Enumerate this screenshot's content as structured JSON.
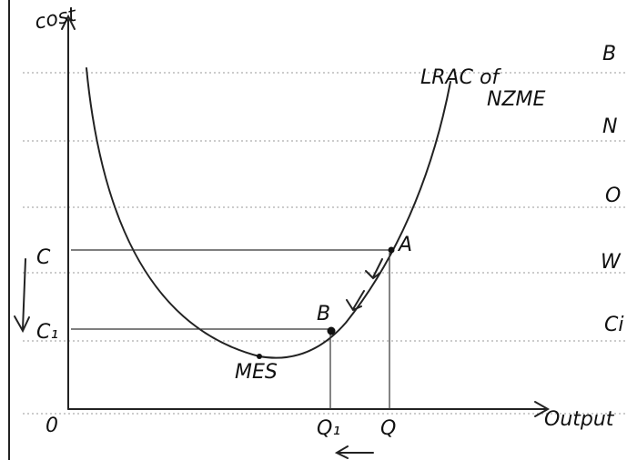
{
  "axes": {
    "y_label": "cost",
    "x_label": "Output",
    "origin": "0"
  },
  "curve": {
    "label_lines": [
      "LRAC of",
      "NZME"
    ]
  },
  "levels": [
    "C",
    "C₁"
  ],
  "quantities": [
    "Q₁",
    "Q"
  ],
  "points": [
    "A",
    "B",
    "MES"
  ],
  "margin_notes": [
    "B",
    "N",
    "O",
    "W",
    "Ci"
  ]
}
